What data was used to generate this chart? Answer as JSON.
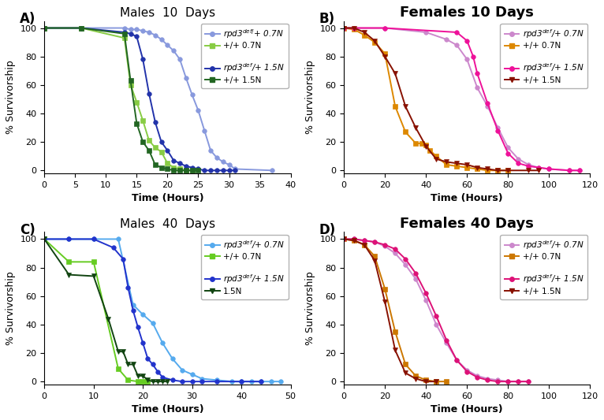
{
  "panels": {
    "A": {
      "title": "Males  10  Days",
      "title_fontsize": 11,
      "title_bold": false,
      "xlim": [
        0,
        40
      ],
      "xticks": [
        0,
        5,
        10,
        15,
        20,
        25,
        30,
        35,
        40
      ],
      "series": [
        {
          "label": "rpd3$^{def/}$+ 0.7N",
          "italic_rpd3": true,
          "color": "#8899dd",
          "marker": "o",
          "x": [
            0,
            6,
            13,
            14,
            15,
            16,
            17,
            18,
            19,
            20,
            21,
            22,
            23,
            24,
            25,
            26,
            27,
            28,
            29,
            30,
            31,
            37
          ],
          "y": [
            100,
            100,
            100,
            99,
            99,
            98,
            97,
            95,
            92,
            88,
            84,
            78,
            65,
            53,
            42,
            28,
            14,
            9,
            6,
            4,
            1,
            0
          ]
        },
        {
          "label": "+/+ 0.7N",
          "italic_rpd3": false,
          "color": "#88cc44",
          "marker": "s",
          "x": [
            0,
            6,
            13,
            14,
            15,
            16,
            17,
            18,
            19,
            20,
            21,
            22,
            23,
            24
          ],
          "y": [
            100,
            100,
            93,
            60,
            48,
            35,
            21,
            16,
            13,
            5,
            2,
            1,
            0,
            0
          ]
        },
        {
          "label": "rpd3$^{def}$/+ 1.5N",
          "italic_rpd3": true,
          "color": "#2233aa",
          "marker": "o",
          "x": [
            0,
            6,
            13,
            14,
            15,
            16,
            17,
            18,
            19,
            20,
            21,
            22,
            23,
            24,
            25,
            26,
            27,
            28,
            29,
            30,
            31
          ],
          "y": [
            100,
            100,
            97,
            96,
            94,
            78,
            54,
            34,
            20,
            14,
            7,
            5,
            3,
            2,
            1,
            0,
            0,
            0,
            0,
            0,
            0
          ]
        },
        {
          "label": "+/+ 1.5N",
          "italic_rpd3": false,
          "color": "#226622",
          "marker": "s",
          "x": [
            0,
            6,
            13,
            14,
            15,
            16,
            17,
            18,
            19,
            20,
            21,
            22,
            23,
            24,
            25
          ],
          "y": [
            100,
            100,
            96,
            63,
            33,
            20,
            14,
            4,
            2,
            1,
            0,
            0,
            0,
            0,
            0
          ]
        }
      ]
    },
    "B": {
      "title": "Females 10 Days",
      "title_fontsize": 13,
      "title_bold": true,
      "xlim": [
        0,
        120
      ],
      "xticks": [
        0,
        20,
        40,
        60,
        80,
        100,
        120
      ],
      "series": [
        {
          "label": "rpd3$^{def}$/+ 0.7N",
          "italic_rpd3": true,
          "color": "#cc88cc",
          "marker": "o",
          "x": [
            0,
            5,
            20,
            40,
            50,
            55,
            60,
            65,
            70,
            75,
            80,
            85,
            90,
            95,
            100,
            110,
            115
          ],
          "y": [
            100,
            100,
            100,
            97,
            92,
            88,
            78,
            58,
            45,
            30,
            16,
            8,
            4,
            2,
            1,
            0,
            0
          ]
        },
        {
          "label": "+/+ 0.7N",
          "italic_rpd3": false,
          "color": "#dd8800",
          "marker": "s",
          "x": [
            0,
            5,
            10,
            15,
            20,
            25,
            30,
            35,
            38,
            40,
            42,
            45,
            50,
            55,
            60,
            65,
            70,
            75,
            80
          ],
          "y": [
            100,
            99,
            95,
            90,
            82,
            45,
            27,
            19,
            19,
            18,
            14,
            10,
            4,
            3,
            2,
            1,
            0,
            0,
            0
          ]
        },
        {
          "label": "rpd3$^{def}$/+ 1.5N",
          "italic_rpd3": true,
          "color": "#ee1199",
          "marker": "o",
          "x": [
            0,
            5,
            20,
            55,
            60,
            63,
            65,
            70,
            75,
            80,
            85,
            90,
            95,
            100,
            110,
            115
          ],
          "y": [
            100,
            100,
            100,
            97,
            91,
            80,
            68,
            47,
            28,
            12,
            5,
            3,
            2,
            1,
            0,
            0
          ]
        },
        {
          "label": "+/+ 1.5N",
          "italic_rpd3": false,
          "color": "#881100",
          "marker": "v",
          "x": [
            0,
            5,
            10,
            15,
            20,
            25,
            30,
            35,
            40,
            45,
            50,
            55,
            60,
            65,
            70,
            75,
            80,
            90,
            95
          ],
          "y": [
            100,
            100,
            97,
            91,
            80,
            68,
            45,
            30,
            17,
            8,
            6,
            5,
            4,
            2,
            1,
            0,
            0,
            0,
            0
          ]
        }
      ]
    },
    "C": {
      "title": "Males  40  Days",
      "title_fontsize": 11,
      "title_bold": false,
      "xlim": [
        0,
        50
      ],
      "xticks": [
        0,
        10,
        20,
        30,
        40,
        50
      ],
      "series": [
        {
          "label": "rpd3$^{def}$/+ 0.7N",
          "italic_rpd3": true,
          "color": "#55aaee",
          "marker": "o",
          "x": [
            0,
            5,
            10,
            15,
            18,
            20,
            22,
            24,
            26,
            28,
            30,
            32,
            35,
            38,
            40,
            42,
            44,
            46,
            48
          ],
          "y": [
            100,
            100,
            100,
            100,
            54,
            47,
            41,
            27,
            16,
            8,
            5,
            2,
            1,
            0,
            0,
            0,
            0,
            0,
            0
          ]
        },
        {
          "label": "+/+ 0.7N",
          "italic_rpd3": false,
          "color": "#66cc22",
          "marker": "s",
          "x": [
            0,
            5,
            10,
            15,
            17,
            19,
            20,
            21
          ],
          "y": [
            100,
            84,
            84,
            9,
            1,
            0,
            0,
            0
          ]
        },
        {
          "label": "rpd3$^{def}$/+ 1.5N",
          "italic_rpd3": true,
          "color": "#2233cc",
          "marker": "o",
          "x": [
            0,
            5,
            10,
            14,
            16,
            17,
            18,
            19,
            20,
            21,
            22,
            23,
            24,
            26,
            28,
            30,
            32,
            35,
            40,
            44
          ],
          "y": [
            100,
            100,
            100,
            94,
            86,
            66,
            50,
            38,
            27,
            16,
            12,
            7,
            3,
            1,
            0,
            0,
            0,
            0,
            0,
            0
          ]
        },
        {
          "label": "1.5N",
          "italic_rpd3": false,
          "color": "#114411",
          "marker": "v",
          "x": [
            0,
            5,
            10,
            13,
            15,
            16,
            17,
            18,
            19,
            20,
            21,
            22,
            23,
            24,
            25
          ],
          "y": [
            100,
            75,
            74,
            44,
            21,
            21,
            12,
            12,
            4,
            4,
            1,
            0,
            0,
            0,
            0
          ]
        }
      ]
    },
    "D": {
      "title": "Females 40 Days",
      "title_fontsize": 13,
      "title_bold": true,
      "xlim": [
        0,
        120
      ],
      "xticks": [
        0,
        20,
        40,
        60,
        80,
        100,
        120
      ],
      "series": [
        {
          "label": "rpd3$^{def}$/+ 0.7N",
          "italic_rpd3": true,
          "color": "#cc88cc",
          "marker": "o",
          "x": [
            0,
            5,
            10,
            15,
            20,
            25,
            30,
            35,
            40,
            45,
            50,
            55,
            60,
            65,
            70,
            75,
            80,
            85,
            90
          ],
          "y": [
            100,
            100,
            99,
            98,
            95,
            90,
            82,
            72,
            57,
            40,
            27,
            15,
            8,
            4,
            2,
            1,
            0,
            0,
            0
          ]
        },
        {
          "label": "+/+ 0.7N",
          "italic_rpd3": false,
          "color": "#cc7700",
          "marker": "s",
          "x": [
            0,
            5,
            10,
            15,
            20,
            25,
            30,
            35,
            40,
            45,
            50
          ],
          "y": [
            100,
            99,
            96,
            88,
            65,
            35,
            12,
            4,
            1,
            0,
            0
          ]
        },
        {
          "label": "rpd3$^{def}$/+ 1.5N",
          "italic_rpd3": true,
          "color": "#dd1177",
          "marker": "o",
          "x": [
            0,
            5,
            10,
            15,
            20,
            25,
            30,
            35,
            40,
            45,
            50,
            55,
            60,
            65,
            70,
            75,
            80,
            85,
            90
          ],
          "y": [
            100,
            100,
            99,
            98,
            96,
            93,
            86,
            76,
            62,
            46,
            29,
            15,
            7,
            3,
            1,
            0,
            0,
            0,
            0
          ]
        },
        {
          "label": "+/+ 1.5N",
          "italic_rpd3": false,
          "color": "#881100",
          "marker": "v",
          "x": [
            0,
            5,
            10,
            15,
            20,
            25,
            30,
            35,
            40,
            45
          ],
          "y": [
            100,
            99,
            96,
            85,
            56,
            22,
            6,
            2,
            0,
            0
          ]
        }
      ]
    }
  },
  "ylabel": "% Survivorship",
  "xlabel": "Time (Hours)"
}
